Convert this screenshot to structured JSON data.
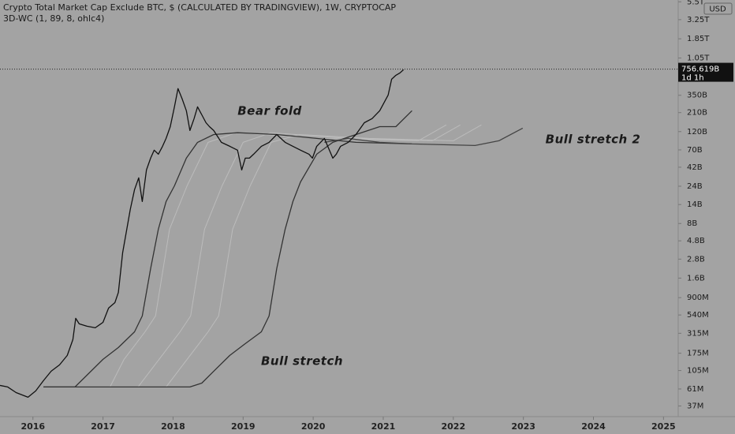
{
  "chart_data": {
    "type": "line",
    "title": "Crypto Total Market Cap Exclude BTC, $ (CALCULATED BY TRADINGVIEW), 1W, CRYPTOCAP",
    "subtitle": "3D-WC (1, 89, 8, ohlc4)",
    "currency": "USD",
    "log_scale": true,
    "grid": false,
    "xlim": [
      2015.53,
      2025.21
    ],
    "xticks": [
      2016,
      2017,
      2018,
      2019,
      2020,
      2021,
      2022,
      2023,
      2024,
      2025
    ],
    "ylim": [
      27000000,
      5800000000000
    ],
    "yticks": [
      {
        "value": 37000000,
        "label": "37M"
      },
      {
        "value": 61000000,
        "label": "61M"
      },
      {
        "value": 105000000,
        "label": "105M"
      },
      {
        "value": 175000000,
        "label": "175M"
      },
      {
        "value": 315000000,
        "label": "315M"
      },
      {
        "value": 540000000,
        "label": "540M"
      },
      {
        "value": 900000000,
        "label": "900M"
      },
      {
        "value": 1600000000,
        "label": "1.6B"
      },
      {
        "value": 2800000000,
        "label": "2.8B"
      },
      {
        "value": 4800000000,
        "label": "4.8B"
      },
      {
        "value": 8000000000,
        "label": "8B"
      },
      {
        "value": 14000000000,
        "label": "14B"
      },
      {
        "value": 24000000000,
        "label": "24B"
      },
      {
        "value": 42000000000,
        "label": "42B"
      },
      {
        "value": 70000000000,
        "label": "70B"
      },
      {
        "value": 120000000000,
        "label": "120B"
      },
      {
        "value": 210000000000,
        "label": "210B"
      },
      {
        "value": 350000000000,
        "label": "350B"
      },
      {
        "value": 1050000000000,
        "label": "1.05T"
      },
      {
        "value": 1850000000000,
        "label": "1.85T"
      },
      {
        "value": 3250000000000,
        "label": "3.25T"
      },
      {
        "value": 5500000000000,
        "label": "5.5T"
      }
    ],
    "last_price": {
      "value": 756619000000,
      "label": "756.619B"
    },
    "countdown": "1d 1h",
    "annotations": [
      "Bear fold",
      "Bull stretch 2",
      "Bull stretch"
    ],
    "series": [
      {
        "color": "#bcbcbc",
        "x": [
          2016.15,
          2017.1,
          2017.3,
          2017.6,
          2017.75,
          2017.95,
          2018.2,
          2018.5,
          2018.9,
          2020.1,
          2021.5,
          2021.9
        ],
        "values": [
          64700000,
          64700000,
          146000000,
          329000000,
          525000000,
          6780000000,
          24300000000,
          87500000000,
          116000000000,
          98200000000,
          91600000000,
          146000000000
        ]
      },
      {
        "color": "#bcbcbc",
        "x": [
          2016.15,
          2017.5,
          2017.8,
          2018.1,
          2018.25,
          2018.45,
          2018.7,
          2019.0,
          2019.4,
          2020.5,
          2021.7,
          2022.1
        ],
        "values": [
          64700000,
          64700000,
          146000000,
          329000000,
          525000000,
          6780000000,
          24300000000,
          87500000000,
          116000000000,
          98200000000,
          91600000000,
          146000000000
        ]
      },
      {
        "color": "#bcbcbc",
        "x": [
          2016.15,
          2017.9,
          2018.2,
          2018.5,
          2018.65,
          2018.85,
          2019.1,
          2019.4,
          2019.8,
          2020.8,
          2022.0,
          2022.4
        ],
        "values": [
          64700000,
          64700000,
          146000000,
          329000000,
          525000000,
          6780000000,
          24300000000,
          87500000000,
          110000000000,
          98200000000,
          91600000000,
          146000000000
        ]
      },
      {
        "color": "#333333",
        "x": [
          2016.15,
          2016.6,
          2016.77,
          2017.0,
          2017.22,
          2017.45,
          2017.56,
          2017.68,
          2017.79,
          2017.9,
          2018.02,
          2018.19,
          2018.35,
          2018.58,
          2018.92,
          2019.48,
          2020.05,
          2020.61,
          2021.41
        ],
        "values": [
          64700000,
          64700000,
          91600000,
          146000000,
          207000000,
          329000000,
          525000000,
          2120000000,
          6780000000,
          15300000000,
          24300000000,
          54900000000,
          87500000000,
          110000000000,
          116000000000,
          110000000000,
          98200000000,
          87500000000,
          83500000000
        ]
      },
      {
        "color": "#333333",
        "x": [
          2016.15,
          2018.24,
          2018.41,
          2018.58,
          2018.81,
          2019.03,
          2019.26,
          2019.37,
          2019.48,
          2019.6,
          2019.71,
          2019.82,
          2020.05,
          2020.28,
          2020.61,
          2020.95,
          2021.18,
          2021.41
        ],
        "values": [
          64700000,
          64700000,
          72600000,
          103000000,
          164000000,
          232000000,
          329000000,
          525000000,
          2120000000,
          6780000000,
          15300000000,
          27300000000,
          61700000000,
          87500000000,
          110000000000,
          139000000000,
          139000000000,
          222000000000
        ]
      },
      {
        "color": "#444444",
        "x": [
          2020.16,
          2020.5,
          2020.95,
          2021.41,
          2021.86,
          2022.31,
          2022.65,
          2022.99
        ],
        "values": [
          87500000000,
          98200000000,
          87500000000,
          83500000000,
          81600000000,
          79700000000,
          91600000000,
          133000000000
        ]
      },
      {
        "color": "#111111",
        "x": [
          2015.53,
          2015.64,
          2015.76,
          2015.93,
          2016.04,
          2016.15,
          2016.26,
          2016.38,
          2016.49,
          2016.57,
          2016.61,
          2016.66,
          2016.77,
          2016.89,
          2017.0,
          2017.08,
          2017.17,
          2017.22,
          2017.28,
          2017.34,
          2017.39,
          2017.45,
          2017.51,
          2017.56,
          2017.62,
          2017.68,
          2017.73,
          2017.79,
          2017.85,
          2017.9,
          2017.96,
          2018.02,
          2018.07,
          2018.13,
          2018.19,
          2018.24,
          2018.3,
          2018.35,
          2018.41,
          2018.47,
          2018.52,
          2018.58,
          2018.69,
          2018.81,
          2018.92,
          2018.98,
          2019.03,
          2019.09,
          2019.15,
          2019.26,
          2019.37,
          2019.48,
          2019.6,
          2019.71,
          2019.82,
          2019.94,
          2019.99,
          2020.05,
          2020.16,
          2020.28,
          2020.33,
          2020.39,
          2020.5,
          2020.61,
          2020.73,
          2020.84,
          2020.95,
          2021.07,
          2021.12,
          2021.18,
          2021.24,
          2021.29
        ],
        "values": [
          67800000,
          64700000,
          54900000,
          47800000,
          57600000,
          77900000,
          103000000,
          124000000,
          164000000,
          261000000,
          489000000,
          416000000,
          388000000,
          370000000,
          435000000,
          662000000,
          778000000,
          1050000000,
          3370000000,
          6780000000,
          12100000000,
          21700000000,
          30700000000,
          15300000000,
          38700000000,
          54900000000,
          69400000000,
          61700000000,
          77900000000,
          98200000000,
          139000000000,
          249000000000,
          426000000000,
          314000000000,
          222000000000,
          124000000000,
          176000000000,
          249000000000,
          197000000000,
          156000000000,
          139000000000,
          124000000000,
          87500000000,
          77900000000,
          69400000000,
          38700000000,
          54900000000,
          54900000000,
          61700000000,
          77900000000,
          87500000000,
          110000000000,
          87500000000,
          77900000000,
          69400000000,
          61700000000,
          54900000000,
          77900000000,
          98200000000,
          54900000000,
          61700000000,
          77900000000,
          87500000000,
          110000000000,
          156000000000,
          176000000000,
          222000000000,
          353000000000,
          562000000000,
          631000000000,
          678000000000,
          744000000000
        ]
      }
    ]
  }
}
